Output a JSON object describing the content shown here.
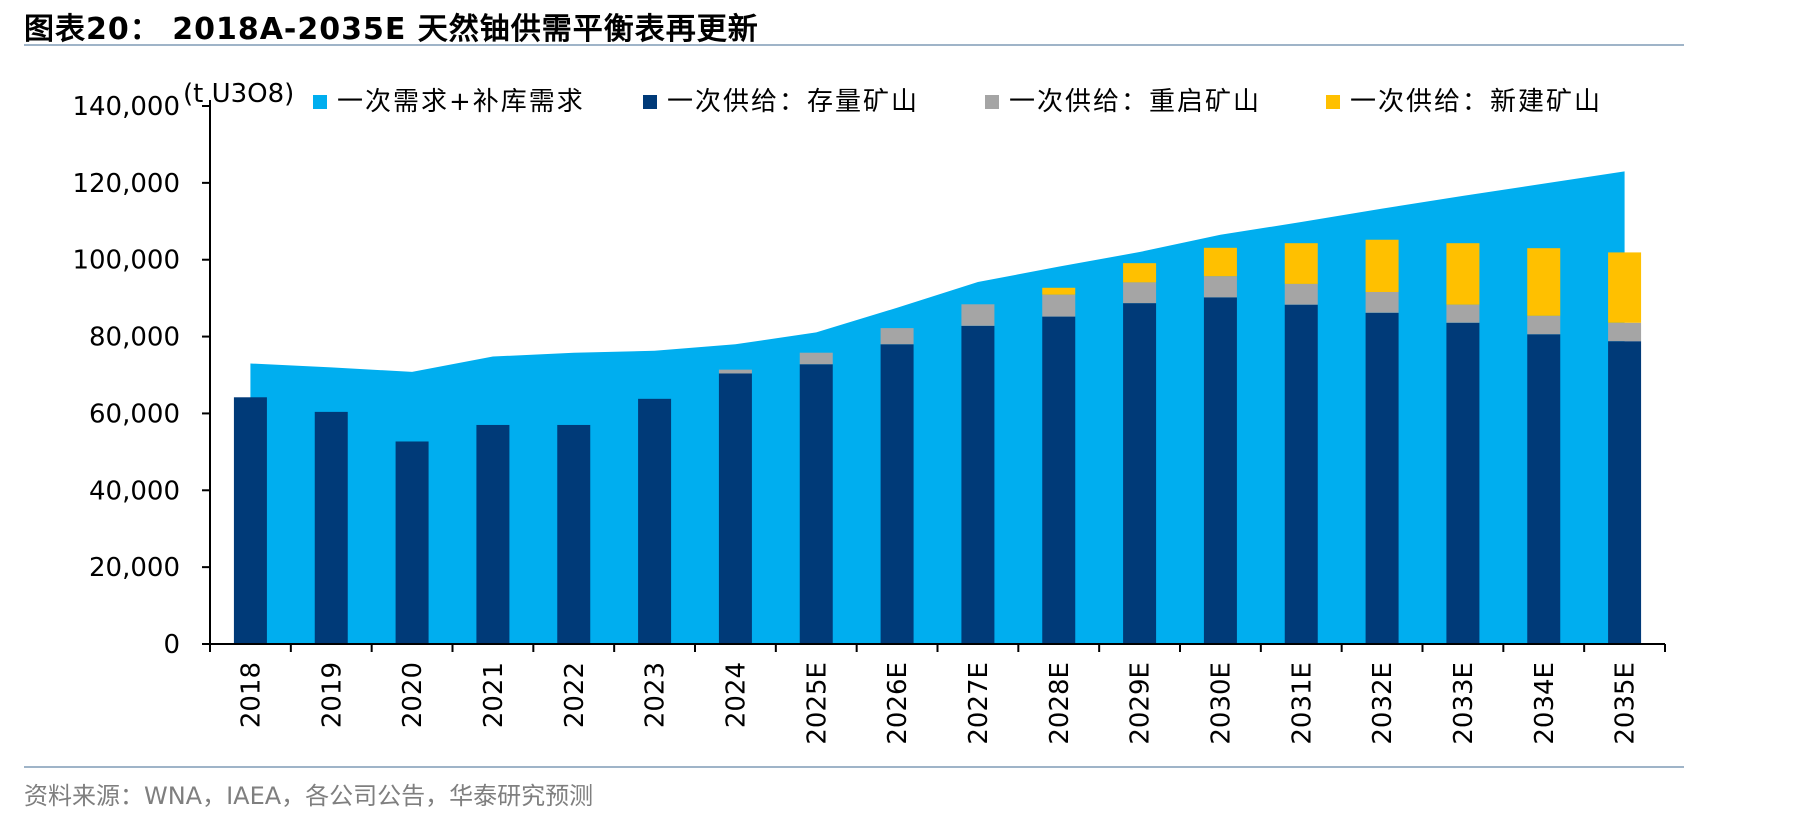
{
  "figure": {
    "title": "图表20： 2018A-2035E 天然铀供需平衡表再更新",
    "source": "资料来源：WNA，IAEA，各公司公告，华泰研究预测"
  },
  "chart_data": {
    "type": "bar",
    "subtype": "stacked bar with area",
    "y_unit": "(t U3O8)",
    "ylim": [
      0,
      140000
    ],
    "y_ticks": [
      0,
      20000,
      40000,
      60000,
      80000,
      100000,
      120000,
      140000
    ],
    "y_tick_labels": [
      "0",
      "20,000",
      "40,000",
      "60,000",
      "80,000",
      "100,000",
      "120,000",
      "140,000"
    ],
    "categories": [
      "2018",
      "2019",
      "2020",
      "2021",
      "2022",
      "2023",
      "2024",
      "2025E",
      "2026E",
      "2027E",
      "2028E",
      "2029E",
      "2030E",
      "2031E",
      "2032E",
      "2033E",
      "2034E",
      "2035E"
    ],
    "legend_position": "top",
    "grid": false,
    "series": [
      {
        "name": "一次需求+补库需求",
        "kind": "area",
        "color": "#00AEEF",
        "values": [
          73000,
          72000,
          70800,
          74800,
          75800,
          76300,
          78000,
          81100,
          87500,
          94200,
          98200,
          102000,
          106500,
          109800,
          113300,
          116600,
          119800,
          123000
        ]
      },
      {
        "name": "一次供给：存量矿山",
        "kind": "bar",
        "color": "#003A78",
        "values": [
          64200,
          60400,
          52700,
          57000,
          57000,
          63800,
          70400,
          72800,
          78000,
          82800,
          85200,
          88700,
          90200,
          88300,
          86200,
          83600,
          80600,
          78800
        ]
      },
      {
        "name": "一次供给：重启矿山",
        "kind": "bar",
        "color": "#A5A5A5",
        "values": [
          0,
          0,
          0,
          0,
          0,
          0,
          1000,
          3000,
          4200,
          5600,
          5700,
          5400,
          5500,
          5400,
          5400,
          4700,
          4800,
          4800
        ]
      },
      {
        "name": "一次供给：新建矿山",
        "kind": "bar",
        "color": "#FFC000",
        "values": [
          0,
          0,
          0,
          0,
          0,
          0,
          0,
          0,
          0,
          0,
          1800,
          5000,
          7400,
          10600,
          13600,
          16000,
          17600,
          18300
        ]
      }
    ]
  }
}
